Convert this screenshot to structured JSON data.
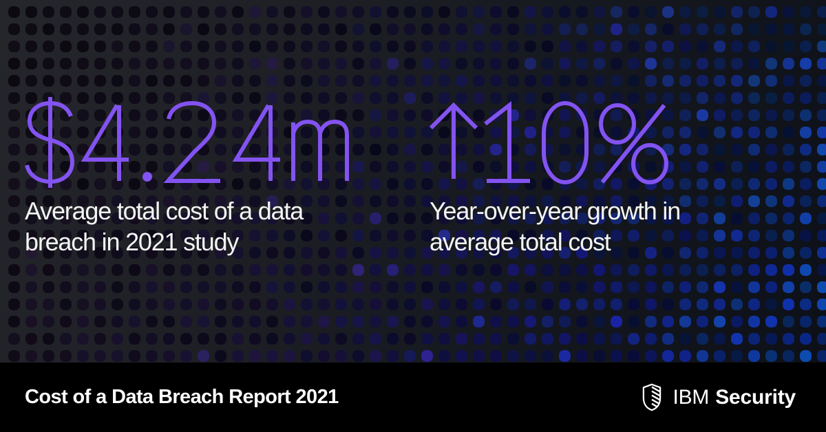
{
  "stats": [
    {
      "value": "$4.24m",
      "label_lines": [
        "Average total cost of a data",
        "breach in 2021 study"
      ]
    },
    {
      "value": "↑10%",
      "label_lines": [
        "Year-over-year growth in",
        "average total cost"
      ]
    }
  ],
  "footer": {
    "report_title": "Cost of a Data Breach Report 2021",
    "brand": {
      "company": "IBM",
      "division": "Security",
      "logo_icon": "shield-icon"
    }
  },
  "colors": {
    "accent_purple": "#8353f1",
    "text_white": "#f4f4f4",
    "footer_bg": "#000000",
    "bg_top_left": "#25262b",
    "bg_bottom_right": "#0d1018",
    "dot_purple_dark": "#1a1430",
    "dot_purple": "#2d2058",
    "dot_indigo": "#2a2a66",
    "dot_blue": "#2f5a9e"
  }
}
